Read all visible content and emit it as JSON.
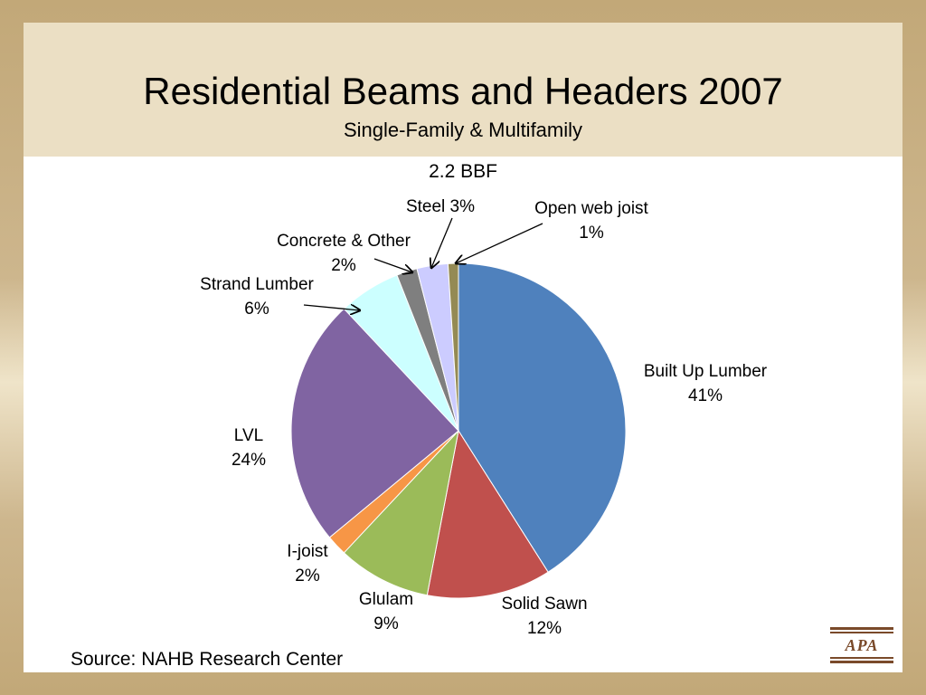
{
  "header": {
    "title": "Residential Beams and Headers 2007",
    "subtitle": "Single-Family & Multifamily"
  },
  "total_label": "2.2 BBF",
  "source": "Source:  NAHB Research Center",
  "logo_text": "APA",
  "chart_data": {
    "type": "pie",
    "slices": [
      {
        "name": "Built Up Lumber",
        "value": 41,
        "label": "41%",
        "color": "#4f81bd"
      },
      {
        "name": "Solid Sawn",
        "value": 12,
        "label": "12%",
        "color": "#c0504d"
      },
      {
        "name": "Glulam",
        "value": 9,
        "label": "9%",
        "color": "#9bbb59"
      },
      {
        "name": "I-joist",
        "value": 2,
        "label": "2%",
        "color": "#f79646"
      },
      {
        "name": "LVL",
        "value": 24,
        "label": "24%",
        "color": "#8064a2"
      },
      {
        "name": "Strand Lumber",
        "value": 6,
        "label": "6%",
        "color": "#ccffff"
      },
      {
        "name": "Concrete & Other",
        "value": 2,
        "label": "2%",
        "color": "#7f7f7f"
      },
      {
        "name": "Steel",
        "value": 3,
        "label": "3%",
        "color": "#ccccff"
      },
      {
        "name": "Open web joist",
        "value": 1,
        "label": "1%",
        "color": "#948a54"
      }
    ]
  }
}
